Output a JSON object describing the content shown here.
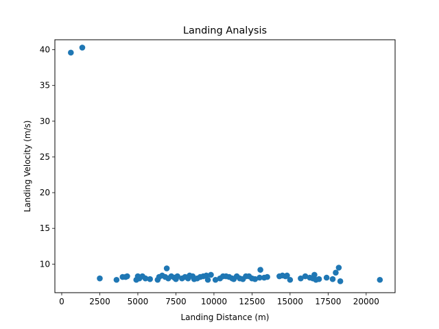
{
  "chart_data": {
    "type": "scatter",
    "title": "Landing Analysis",
    "xlabel": "Landing Distance (m)",
    "ylabel": "Landing Velocity (m/s)",
    "xlim": [
      -450,
      21900
    ],
    "ylim": [
      6.0,
      41.4
    ],
    "xticks": [
      0,
      2500,
      5000,
      7500,
      10000,
      12500,
      15000,
      17500,
      20000
    ],
    "yticks": [
      10,
      15,
      20,
      25,
      30,
      35,
      40
    ],
    "grid": false,
    "color": "#1f77b4",
    "series": [
      {
        "points": [
          [
            600,
            39.6
          ],
          [
            1350,
            40.3
          ],
          [
            2500,
            8.0
          ],
          [
            3600,
            7.8
          ],
          [
            4000,
            8.2
          ],
          [
            4300,
            8.3
          ],
          [
            4200,
            8.2
          ],
          [
            4900,
            7.8
          ],
          [
            5000,
            8.3
          ],
          [
            5100,
            8.0
          ],
          [
            5300,
            8.3
          ],
          [
            5500,
            8.0
          ],
          [
            5800,
            7.9
          ],
          [
            6300,
            7.8
          ],
          [
            6400,
            8.2
          ],
          [
            6600,
            8.4
          ],
          [
            6800,
            8.2
          ],
          [
            6900,
            9.4
          ],
          [
            7000,
            8.0
          ],
          [
            7200,
            8.3
          ],
          [
            7400,
            8.1
          ],
          [
            7500,
            7.9
          ],
          [
            7600,
            8.3
          ],
          [
            7900,
            8.0
          ],
          [
            8100,
            8.2
          ],
          [
            8300,
            8.0
          ],
          [
            8400,
            8.4
          ],
          [
            8600,
            8.3
          ],
          [
            8700,
            7.9
          ],
          [
            8900,
            8.0
          ],
          [
            9100,
            8.2
          ],
          [
            9300,
            8.3
          ],
          [
            9500,
            8.4
          ],
          [
            9600,
            7.8
          ],
          [
            9800,
            8.5
          ],
          [
            10100,
            7.8
          ],
          [
            10400,
            8.0
          ],
          [
            10600,
            8.3
          ],
          [
            10800,
            8.3
          ],
          [
            11000,
            8.2
          ],
          [
            11200,
            8.0
          ],
          [
            11300,
            7.9
          ],
          [
            11500,
            8.3
          ],
          [
            11700,
            8.0
          ],
          [
            11900,
            7.9
          ],
          [
            12100,
            8.3
          ],
          [
            12300,
            8.3
          ],
          [
            12500,
            8.0
          ],
          [
            12700,
            7.9
          ],
          [
            13000,
            8.1
          ],
          [
            13050,
            9.2
          ],
          [
            13300,
            8.1
          ],
          [
            13500,
            8.2
          ],
          [
            14300,
            8.3
          ],
          [
            14500,
            8.4
          ],
          [
            14700,
            8.3
          ],
          [
            14800,
            8.4
          ],
          [
            15000,
            7.8
          ],
          [
            15700,
            8.0
          ],
          [
            16000,
            8.3
          ],
          [
            16300,
            8.1
          ],
          [
            16500,
            8.0
          ],
          [
            16600,
            8.5
          ],
          [
            16700,
            7.8
          ],
          [
            16900,
            7.9
          ],
          [
            17400,
            8.1
          ],
          [
            17800,
            7.9
          ],
          [
            18000,
            8.8
          ],
          [
            18200,
            9.5
          ],
          [
            18300,
            7.6
          ],
          [
            20900,
            7.8
          ]
        ]
      }
    ]
  }
}
